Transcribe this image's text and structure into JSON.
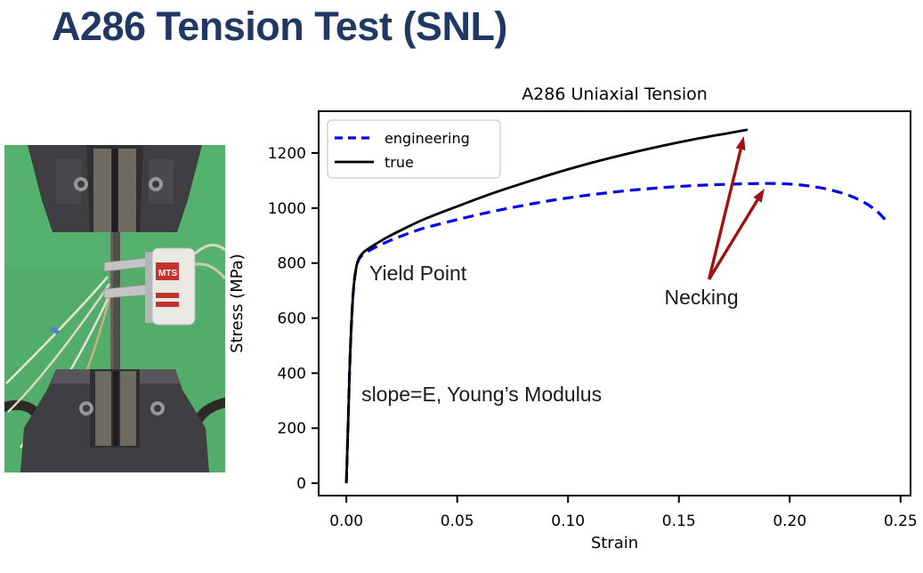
{
  "slide": {
    "title": "A286 Tension Test (SNL)",
    "title_color": "#1f3864",
    "background_color": "#ffffff"
  },
  "photo": {
    "label": "A286 specimen clamped in tension test machine with clip-on extensometer",
    "extensometer_brand": "MTS",
    "colors": {
      "backdrop_green": "#52ad6a",
      "grip_dark": "#3f3e42",
      "wedge_plate": "#6f6a60",
      "specimen": "#4f4e49",
      "extensometer_frame": "#c2c4c6",
      "extensometer_box": "#e9e8e2",
      "label_red": "#c23230",
      "wire_light": "#e8e2d4",
      "wire_tan": "#c9ad8a",
      "cable_black": "#2b2a27"
    }
  },
  "chart_data": {
    "type": "line",
    "title": "A286 Uniaxial Tension",
    "xlabel": "Strain",
    "ylabel": "Stress (MPa)",
    "xlim": [
      -0.0125,
      0.2545
    ],
    "ylim": [
      -45,
      1352
    ],
    "x_ticks": [
      0.0,
      0.05,
      0.1,
      0.15,
      0.2,
      0.25
    ],
    "x_tick_labels": [
      "0.00",
      "0.05",
      "0.10",
      "0.15",
      "0.20",
      "0.25"
    ],
    "y_ticks": [
      0,
      200,
      400,
      600,
      800,
      1000,
      1200
    ],
    "y_tick_labels": [
      "0",
      "200",
      "400",
      "600",
      "800",
      "1000",
      "1200"
    ],
    "grid": false,
    "legend": {
      "position": "upper-left",
      "entries": [
        "engineering",
        "true"
      ]
    },
    "series": [
      {
        "name": "engineering",
        "color": "#0000ee",
        "line_style": "dashed",
        "line_width": 3.2,
        "points": [
          [
            0.0,
            0
          ],
          [
            0.0004,
            110
          ],
          [
            0.0009,
            250
          ],
          [
            0.0014,
            390
          ],
          [
            0.0019,
            510
          ],
          [
            0.0025,
            615
          ],
          [
            0.0031,
            695
          ],
          [
            0.0039,
            755
          ],
          [
            0.0048,
            795
          ],
          [
            0.006,
            818
          ],
          [
            0.008,
            834
          ],
          [
            0.012,
            853
          ],
          [
            0.018,
            876
          ],
          [
            0.025,
            899
          ],
          [
            0.035,
            927
          ],
          [
            0.05,
            958
          ],
          [
            0.065,
            986
          ],
          [
            0.08,
            1010
          ],
          [
            0.095,
            1031
          ],
          [
            0.11,
            1048
          ],
          [
            0.125,
            1062
          ],
          [
            0.14,
            1073
          ],
          [
            0.155,
            1081
          ],
          [
            0.17,
            1086
          ],
          [
            0.185,
            1089
          ],
          [
            0.195,
            1089
          ],
          [
            0.205,
            1084
          ],
          [
            0.215,
            1072
          ],
          [
            0.225,
            1051
          ],
          [
            0.233,
            1023
          ],
          [
            0.239,
            991
          ],
          [
            0.243,
            958
          ]
        ]
      },
      {
        "name": "true",
        "color": "#000000",
        "line_style": "solid",
        "line_width": 2.8,
        "points": [
          [
            0.0,
            0
          ],
          [
            0.0004,
            110
          ],
          [
            0.0009,
            250
          ],
          [
            0.0014,
            390
          ],
          [
            0.0019,
            510
          ],
          [
            0.0025,
            615
          ],
          [
            0.0031,
            695
          ],
          [
            0.0039,
            755
          ],
          [
            0.0048,
            797
          ],
          [
            0.006,
            822
          ],
          [
            0.008,
            841
          ],
          [
            0.012,
            863
          ],
          [
            0.018,
            892
          ],
          [
            0.025,
            921
          ],
          [
            0.035,
            959
          ],
          [
            0.05,
            1006
          ],
          [
            0.065,
            1051
          ],
          [
            0.08,
            1091
          ],
          [
            0.095,
            1129
          ],
          [
            0.11,
            1163
          ],
          [
            0.125,
            1194
          ],
          [
            0.14,
            1222
          ],
          [
            0.155,
            1247
          ],
          [
            0.17,
            1269
          ],
          [
            0.181,
            1285
          ]
        ]
      }
    ],
    "annotations": {
      "texts": [
        {
          "label": "Yield Point",
          "x": 0.0104,
          "y": 799
        },
        {
          "label": "slope=E, Young’s Modulus",
          "x": 0.0068,
          "y": 359
        },
        {
          "label": "Necking",
          "x": 0.1435,
          "y": 712
        }
      ],
      "arrows": [
        {
          "tail": [
            0.1636,
            741
          ],
          "tip": [
            0.1793,
            1261
          ]
        },
        {
          "tail": [
            0.1636,
            741
          ],
          "tip": [
            0.1886,
            1071
          ]
        }
      ],
      "arrow_color": "#a01212",
      "text_color": "#1a1b1f",
      "font_size": 23
    }
  }
}
